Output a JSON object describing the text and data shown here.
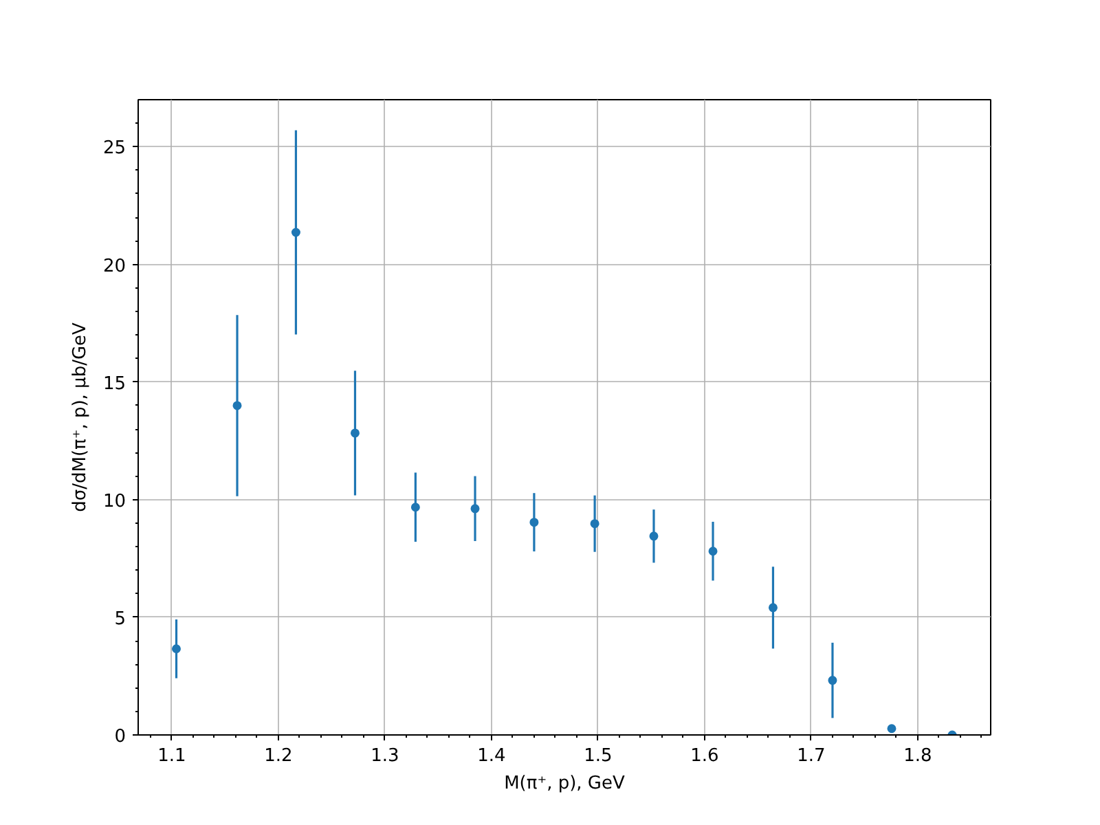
{
  "chart_data": {
    "type": "scatter",
    "xlabel": "M(π⁺, p), GeV",
    "ylabel": "dσ/dM(π⁺, p), μb/GeV",
    "x": [
      1.1043,
      1.1614,
      1.2165,
      1.272,
      1.3287,
      1.3846,
      1.44,
      1.4969,
      1.5523,
      1.6078,
      1.6642,
      1.72,
      1.7755,
      1.8323
    ],
    "values": [
      3.66,
      14.0,
      21.36,
      12.83,
      9.68,
      9.62,
      9.04,
      8.98,
      8.45,
      7.81,
      5.41,
      2.32,
      0.27,
      0.0
    ],
    "errors": [
      1.25,
      3.85,
      4.34,
      2.65,
      1.47,
      1.38,
      1.24,
      1.2,
      1.13,
      1.25,
      1.74,
      1.6,
      null,
      null
    ],
    "color": "#1f77b4",
    "marker": "circle",
    "grid": true,
    "xlim": [
      1.0685,
      1.8684
    ],
    "ylim": [
      0,
      27
    ],
    "xticks": [
      {
        "value": 1.08,
        "label": null
      },
      1.1,
      {
        "value": 1.12,
        "label": null
      },
      {
        "value": 1.14,
        "label": null
      },
      {
        "value": 1.16,
        "label": null
      },
      {
        "value": 1.18,
        "label": null
      },
      1.2,
      {
        "value": 1.22,
        "label": null
      },
      {
        "value": 1.24,
        "label": null
      },
      {
        "value": 1.26,
        "label": null
      },
      {
        "value": 1.28,
        "label": null
      },
      1.3,
      {
        "value": 1.32,
        "label": null
      },
      {
        "value": 1.34,
        "label": null
      },
      {
        "value": 1.36,
        "label": null
      },
      {
        "value": 1.38,
        "label": null
      },
      1.4,
      {
        "value": 1.42,
        "label": null
      },
      {
        "value": 1.44,
        "label": null
      },
      {
        "value": 1.46,
        "label": null
      },
      {
        "value": 1.48,
        "label": null
      },
      1.5,
      {
        "value": 1.52,
        "label": null
      },
      {
        "value": 1.54,
        "label": null
      },
      {
        "value": 1.56,
        "label": null
      },
      {
        "value": 1.58,
        "label": null
      },
      1.6,
      {
        "value": 1.62,
        "label": null
      },
      {
        "value": 1.64,
        "label": null
      },
      {
        "value": 1.66,
        "label": null
      },
      {
        "value": 1.68,
        "label": null
      },
      1.7,
      {
        "value": 1.72,
        "label": null
      },
      {
        "value": 1.74,
        "label": null
      },
      {
        "value": 1.76,
        "label": null
      },
      {
        "value": 1.78,
        "label": null
      },
      1.8,
      {
        "value": 1.82,
        "label": null
      },
      {
        "value": 1.84,
        "label": null
      },
      {
        "value": 1.86,
        "label": null
      }
    ],
    "yticks": [
      0,
      {
        "value": 1,
        "label": null
      },
      {
        "value": 2,
        "label": null
      },
      {
        "value": 3,
        "label": null
      },
      {
        "value": 4,
        "label": null
      },
      5,
      {
        "value": 6,
        "label": null
      },
      {
        "value": 7,
        "label": null
      },
      {
        "value": 8,
        "label": null
      },
      {
        "value": 9,
        "label": null
      },
      10,
      {
        "value": 11,
        "label": null
      },
      {
        "value": 12,
        "label": null
      },
      {
        "value": 13,
        "label": null
      },
      {
        "value": 14,
        "label": null
      },
      15,
      {
        "value": 16,
        "label": null
      },
      {
        "value": 17,
        "label": null
      },
      {
        "value": 18,
        "label": null
      },
      {
        "value": 19,
        "label": null
      },
      20,
      {
        "value": 21,
        "label": null
      },
      {
        "value": 22,
        "label": null
      },
      {
        "value": 23,
        "label": null
      },
      {
        "value": 24,
        "label": null
      },
      25,
      {
        "value": 26,
        "label": null
      }
    ]
  }
}
